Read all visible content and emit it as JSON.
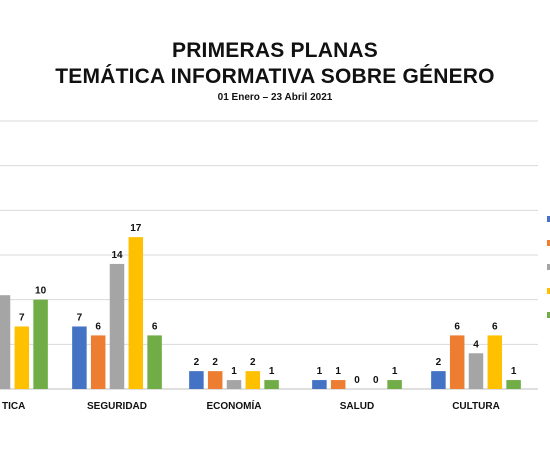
{
  "chart_data": {
    "type": "bar",
    "title_lines": [
      "PRIMERAS PLANAS",
      "TEMÁTICA INFORMATIVA SOBRE GÉNERO"
    ],
    "subtitle": "01 Enero – 23 Abril 2021",
    "xlabel": "",
    "ylabel": "",
    "ylim": [
      0,
      30
    ],
    "grid": true,
    "legend": "right",
    "categories": [
      "POLÍTICA",
      "SEGURIDAD",
      "ECONOMÍA",
      "SALUD",
      "CULTURA"
    ],
    "category_labels": [
      "TICA",
      "SEGURIDAD",
      "ECONOMÍA",
      "SALUD",
      "CULTURA"
    ],
    "series": [
      {
        "color": "#4472C4",
        "values": [
          null,
          7,
          2,
          1,
          2
        ]
      },
      {
        "color": "#ED7D31",
        "values": [
          null,
          6,
          2,
          1,
          6
        ]
      },
      {
        "color": "#A5A5A5",
        "values": [
          null,
          14,
          1,
          0,
          4
        ]
      },
      {
        "color": "#FFC000",
        "values": [
          7,
          17,
          2,
          0,
          6
        ]
      },
      {
        "color": "#70AD47",
        "values": [
          10,
          6,
          1,
          1,
          1
        ]
      }
    ],
    "partial_bars": [
      {
        "category": 0,
        "series": 2,
        "value": 10.5
      }
    ]
  }
}
